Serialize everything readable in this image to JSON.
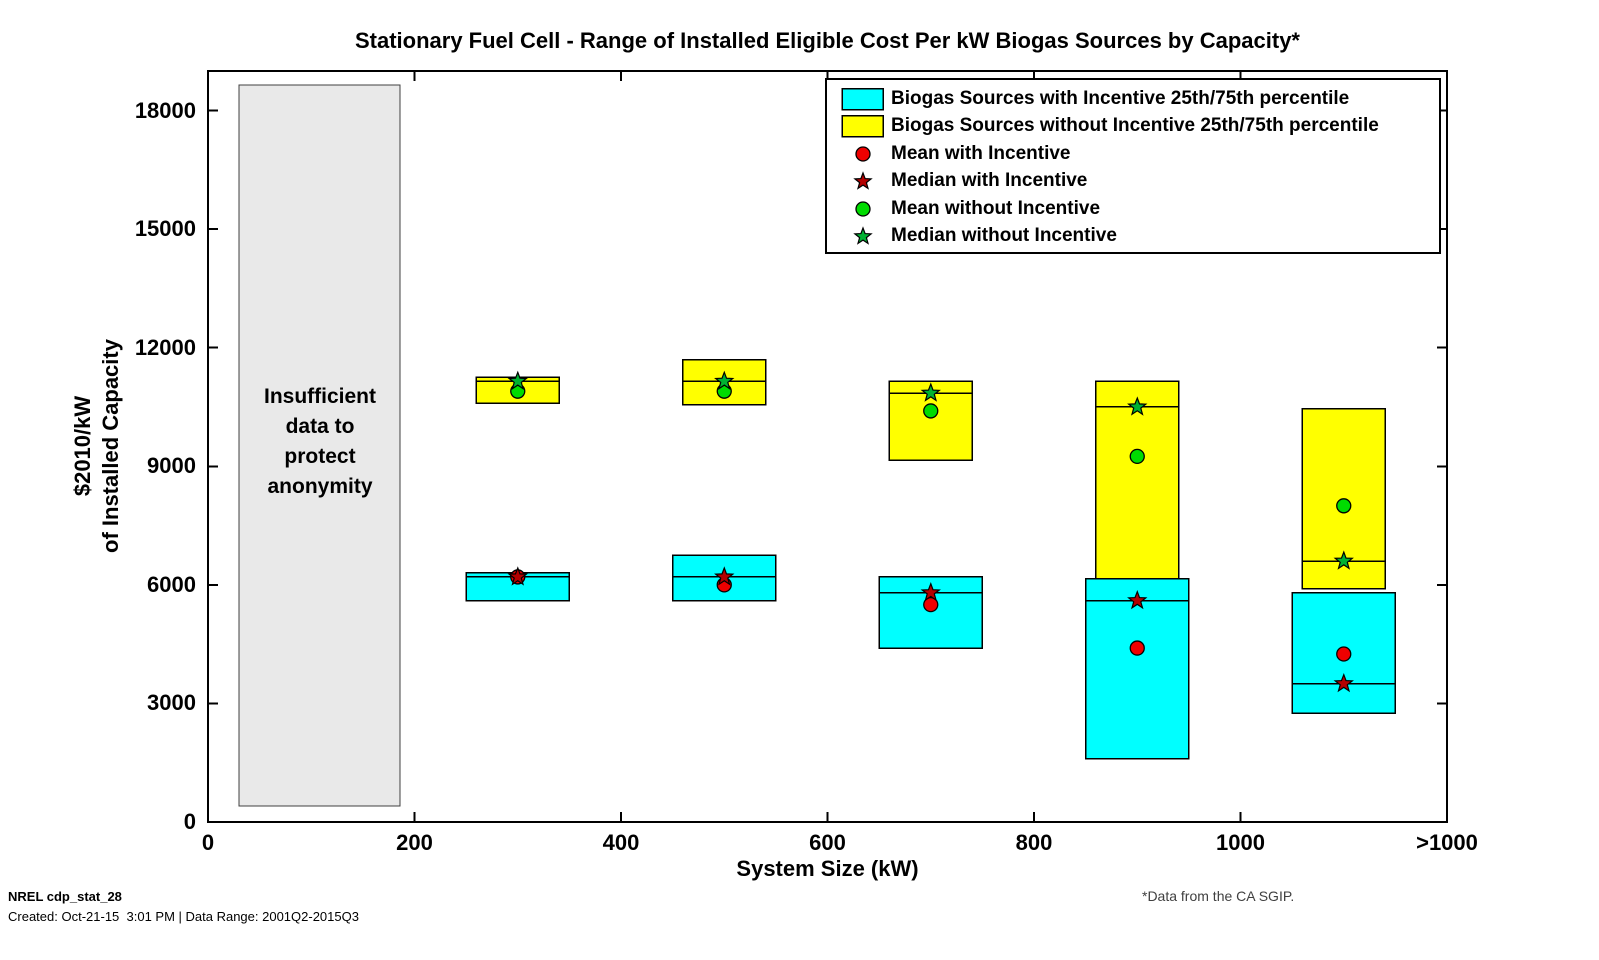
{
  "chart_data": {
    "type": "box-range",
    "title": "Stationary Fuel Cell - Range of Installed Eligible Cost Per kW Biogas Sources by Capacity*",
    "xlabel": "System Size (kW)",
    "ylabel_lines": [
      "$2010/kW",
      "of Installed Capacity"
    ],
    "units": "$2010/kW of Installed Capacity",
    "xlim": [
      0,
      1200
    ],
    "ylim": [
      0,
      19000
    ],
    "grid": false,
    "legend_position": "top-right-inside",
    "x_ticks": [
      {
        "v": 0,
        "label": "0"
      },
      {
        "v": 200,
        "label": "200"
      },
      {
        "v": 400,
        "label": "400"
      },
      {
        "v": 600,
        "label": "600"
      },
      {
        "v": 800,
        "label": "800"
      },
      {
        "v": 1000,
        "label": "1000"
      },
      {
        "v": 1200,
        "label": ">1000"
      }
    ],
    "y_ticks": [
      {
        "v": 0,
        "label": "0"
      },
      {
        "v": 3000,
        "label": "3000"
      },
      {
        "v": 6000,
        "label": "6000"
      },
      {
        "v": 9000,
        "label": "9000"
      },
      {
        "v": 12000,
        "label": "12000"
      },
      {
        "v": 15000,
        "label": "15000"
      },
      {
        "v": 18000,
        "label": "18000"
      }
    ],
    "annotation": {
      "lines": [
        "Insufficient",
        "data to",
        "protect",
        "anonymity"
      ],
      "x_range_kw": [
        30,
        186
      ],
      "y_range_usd": [
        400,
        18650
      ],
      "fill": "#e9e9e9",
      "border": "#404040"
    },
    "colors": {
      "with_incentive_box": "#00ffff",
      "without_incentive_box": "#ffff00",
      "mean_with": "#ee0000",
      "median_with": "#b40000",
      "mean_without": "#00dc00",
      "median_without": "#00b232",
      "box_edge": "#000000"
    },
    "box_width_kw": {
      "with_incentive": 100,
      "without_incentive": 80
    },
    "groups": [
      {
        "system_size_kw": 300,
        "with_incentive": {
          "q25": 5600,
          "q75": 6300,
          "median": 6200,
          "mean": 6200
        },
        "without_incentive": {
          "q25": 10600,
          "q75": 11250,
          "median": 11150,
          "mean": 10900
        }
      },
      {
        "system_size_kw": 500,
        "with_incentive": {
          "q25": 5600,
          "q75": 6750,
          "median": 6200,
          "mean": 6000
        },
        "without_incentive": {
          "q25": 10550,
          "q75": 11700,
          "median": 11150,
          "mean": 10900
        }
      },
      {
        "system_size_kw": 700,
        "with_incentive": {
          "q25": 4400,
          "q75": 6200,
          "median": 5800,
          "mean": 5500
        },
        "without_incentive": {
          "q25": 9150,
          "q75": 11150,
          "median": 10850,
          "mean": 10400
        }
      },
      {
        "system_size_kw": 900,
        "with_incentive": {
          "q25": 1600,
          "q75": 6150,
          "median": 5600,
          "mean": 4400
        },
        "without_incentive": {
          "q25": 6150,
          "q75": 11150,
          "median": 10500,
          "mean": 9250
        }
      },
      {
        "system_size_kw": 1100,
        "with_incentive": {
          "q25": 2750,
          "q75": 5800,
          "median": 3500,
          "mean": 4250
        },
        "without_incentive": {
          "q25": 5900,
          "q75": 10450,
          "median": 6600,
          "mean": 8000
        }
      }
    ],
    "legend_items": [
      {
        "marker": "rect",
        "color": "#00ffff",
        "label": "Biogas Sources with Incentive 25th/75th percentile"
      },
      {
        "marker": "rect",
        "color": "#ffff00",
        "label": "Biogas Sources without Incentive 25th/75th percentile"
      },
      {
        "marker": "circle",
        "color": "#ee0000",
        "label": "Mean with Incentive"
      },
      {
        "marker": "star",
        "color": "#b40000",
        "label": "Median with Incentive"
      },
      {
        "marker": "circle",
        "color": "#00dc00",
        "label": "Mean without Incentive"
      },
      {
        "marker": "star",
        "color": "#00b232",
        "label": "Median without Incentive"
      }
    ]
  },
  "footnotes": {
    "nrel_id": "NREL cdp_stat_28",
    "created": "Created: Oct-21-15  3:01 PM | Data Range: 2001Q2-2015Q3",
    "data_source": "*Data from the CA SGIP."
  }
}
